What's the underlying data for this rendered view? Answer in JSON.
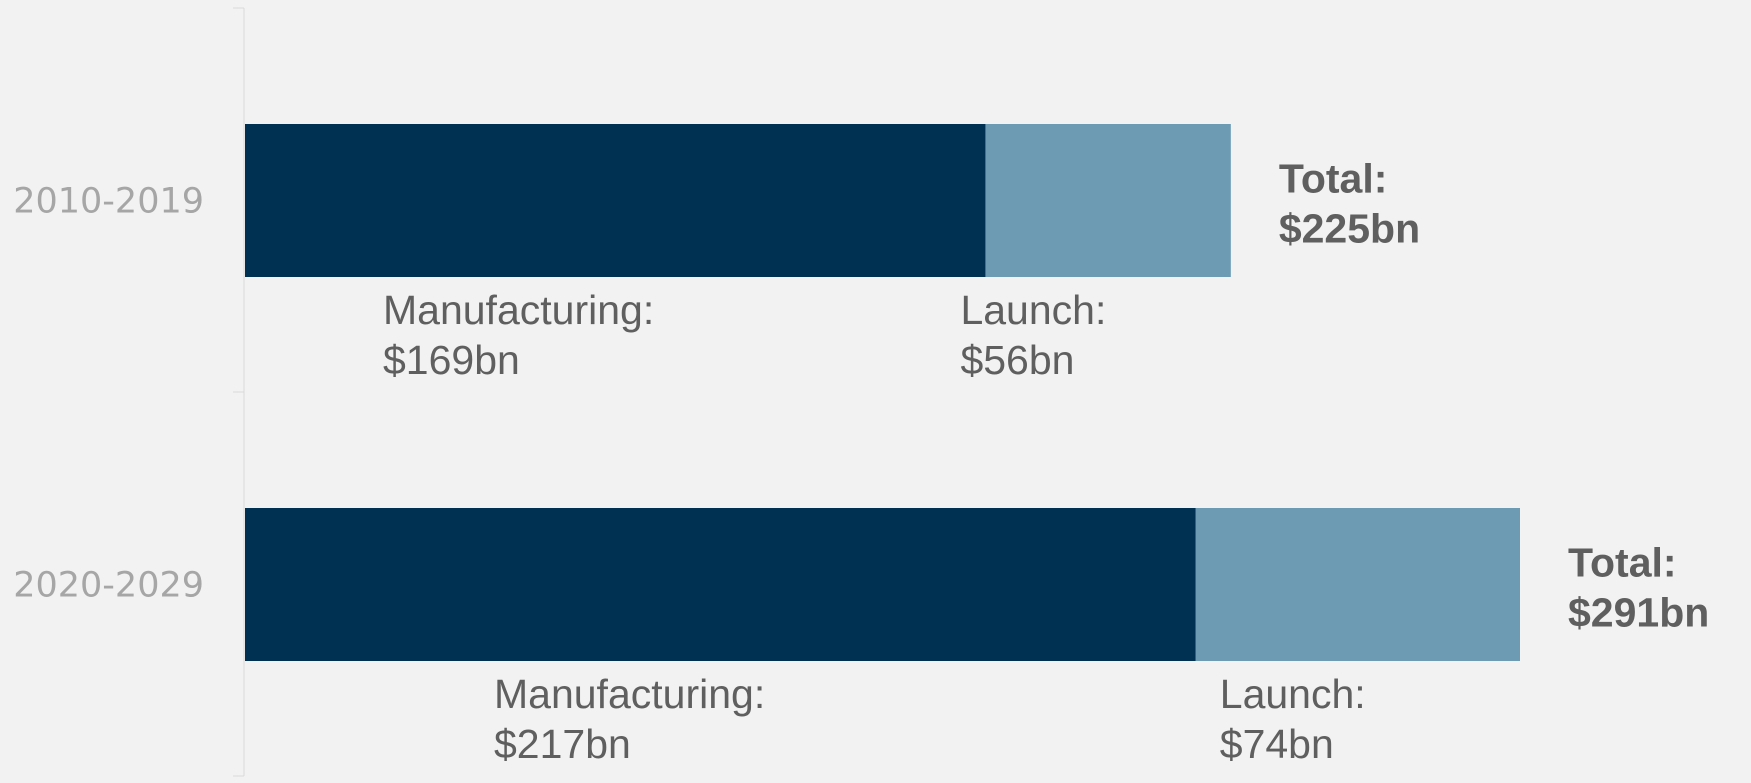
{
  "chart_data": {
    "type": "bar",
    "orientation": "horizontal",
    "stacked": true,
    "categories": [
      "2010-2019",
      "2020-2029"
    ],
    "series": [
      {
        "values": [
          169,
          217
        ],
        "color": "#003152",
        "label_prefix": "Manufacturing:",
        "value_labels": [
          "$169bn",
          "$217bn"
        ]
      },
      {
        "values": [
          56,
          74
        ],
        "color": "#6d9bb4",
        "label_prefix": "Launch:",
        "value_labels": [
          "$56bn",
          "$74bn"
        ]
      }
    ],
    "totals": [
      {
        "prefix": "Total:",
        "value": "$225bn"
      },
      {
        "prefix": "Total:",
        "value": "$291bn"
      }
    ],
    "xlim": [
      0,
      291
    ],
    "grid": false,
    "legend": "none",
    "title": "",
    "xlabel": "",
    "ylabel": ""
  }
}
